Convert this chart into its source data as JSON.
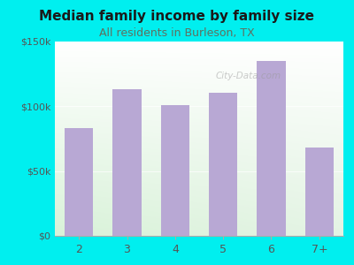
{
  "title": "Median family income by family size",
  "subtitle": "All residents in Burleson, TX",
  "categories": [
    "2",
    "3",
    "4",
    "5",
    "6",
    "7+"
  ],
  "values": [
    83000,
    113000,
    101000,
    110000,
    135000,
    68000
  ],
  "bar_color": "#b8a8d4",
  "background_outer": "#00efef",
  "ylim": [
    0,
    150000
  ],
  "yticks": [
    0,
    50000,
    100000,
    150000
  ],
  "ytick_labels": [
    "$0",
    "$50k",
    "$100k",
    "$150k"
  ],
  "title_fontsize": 11,
  "subtitle_fontsize": 9,
  "title_color": "#1a1a1a",
  "subtitle_color": "#607060",
  "tick_color": "#555555",
  "watermark": "City-Data.com"
}
